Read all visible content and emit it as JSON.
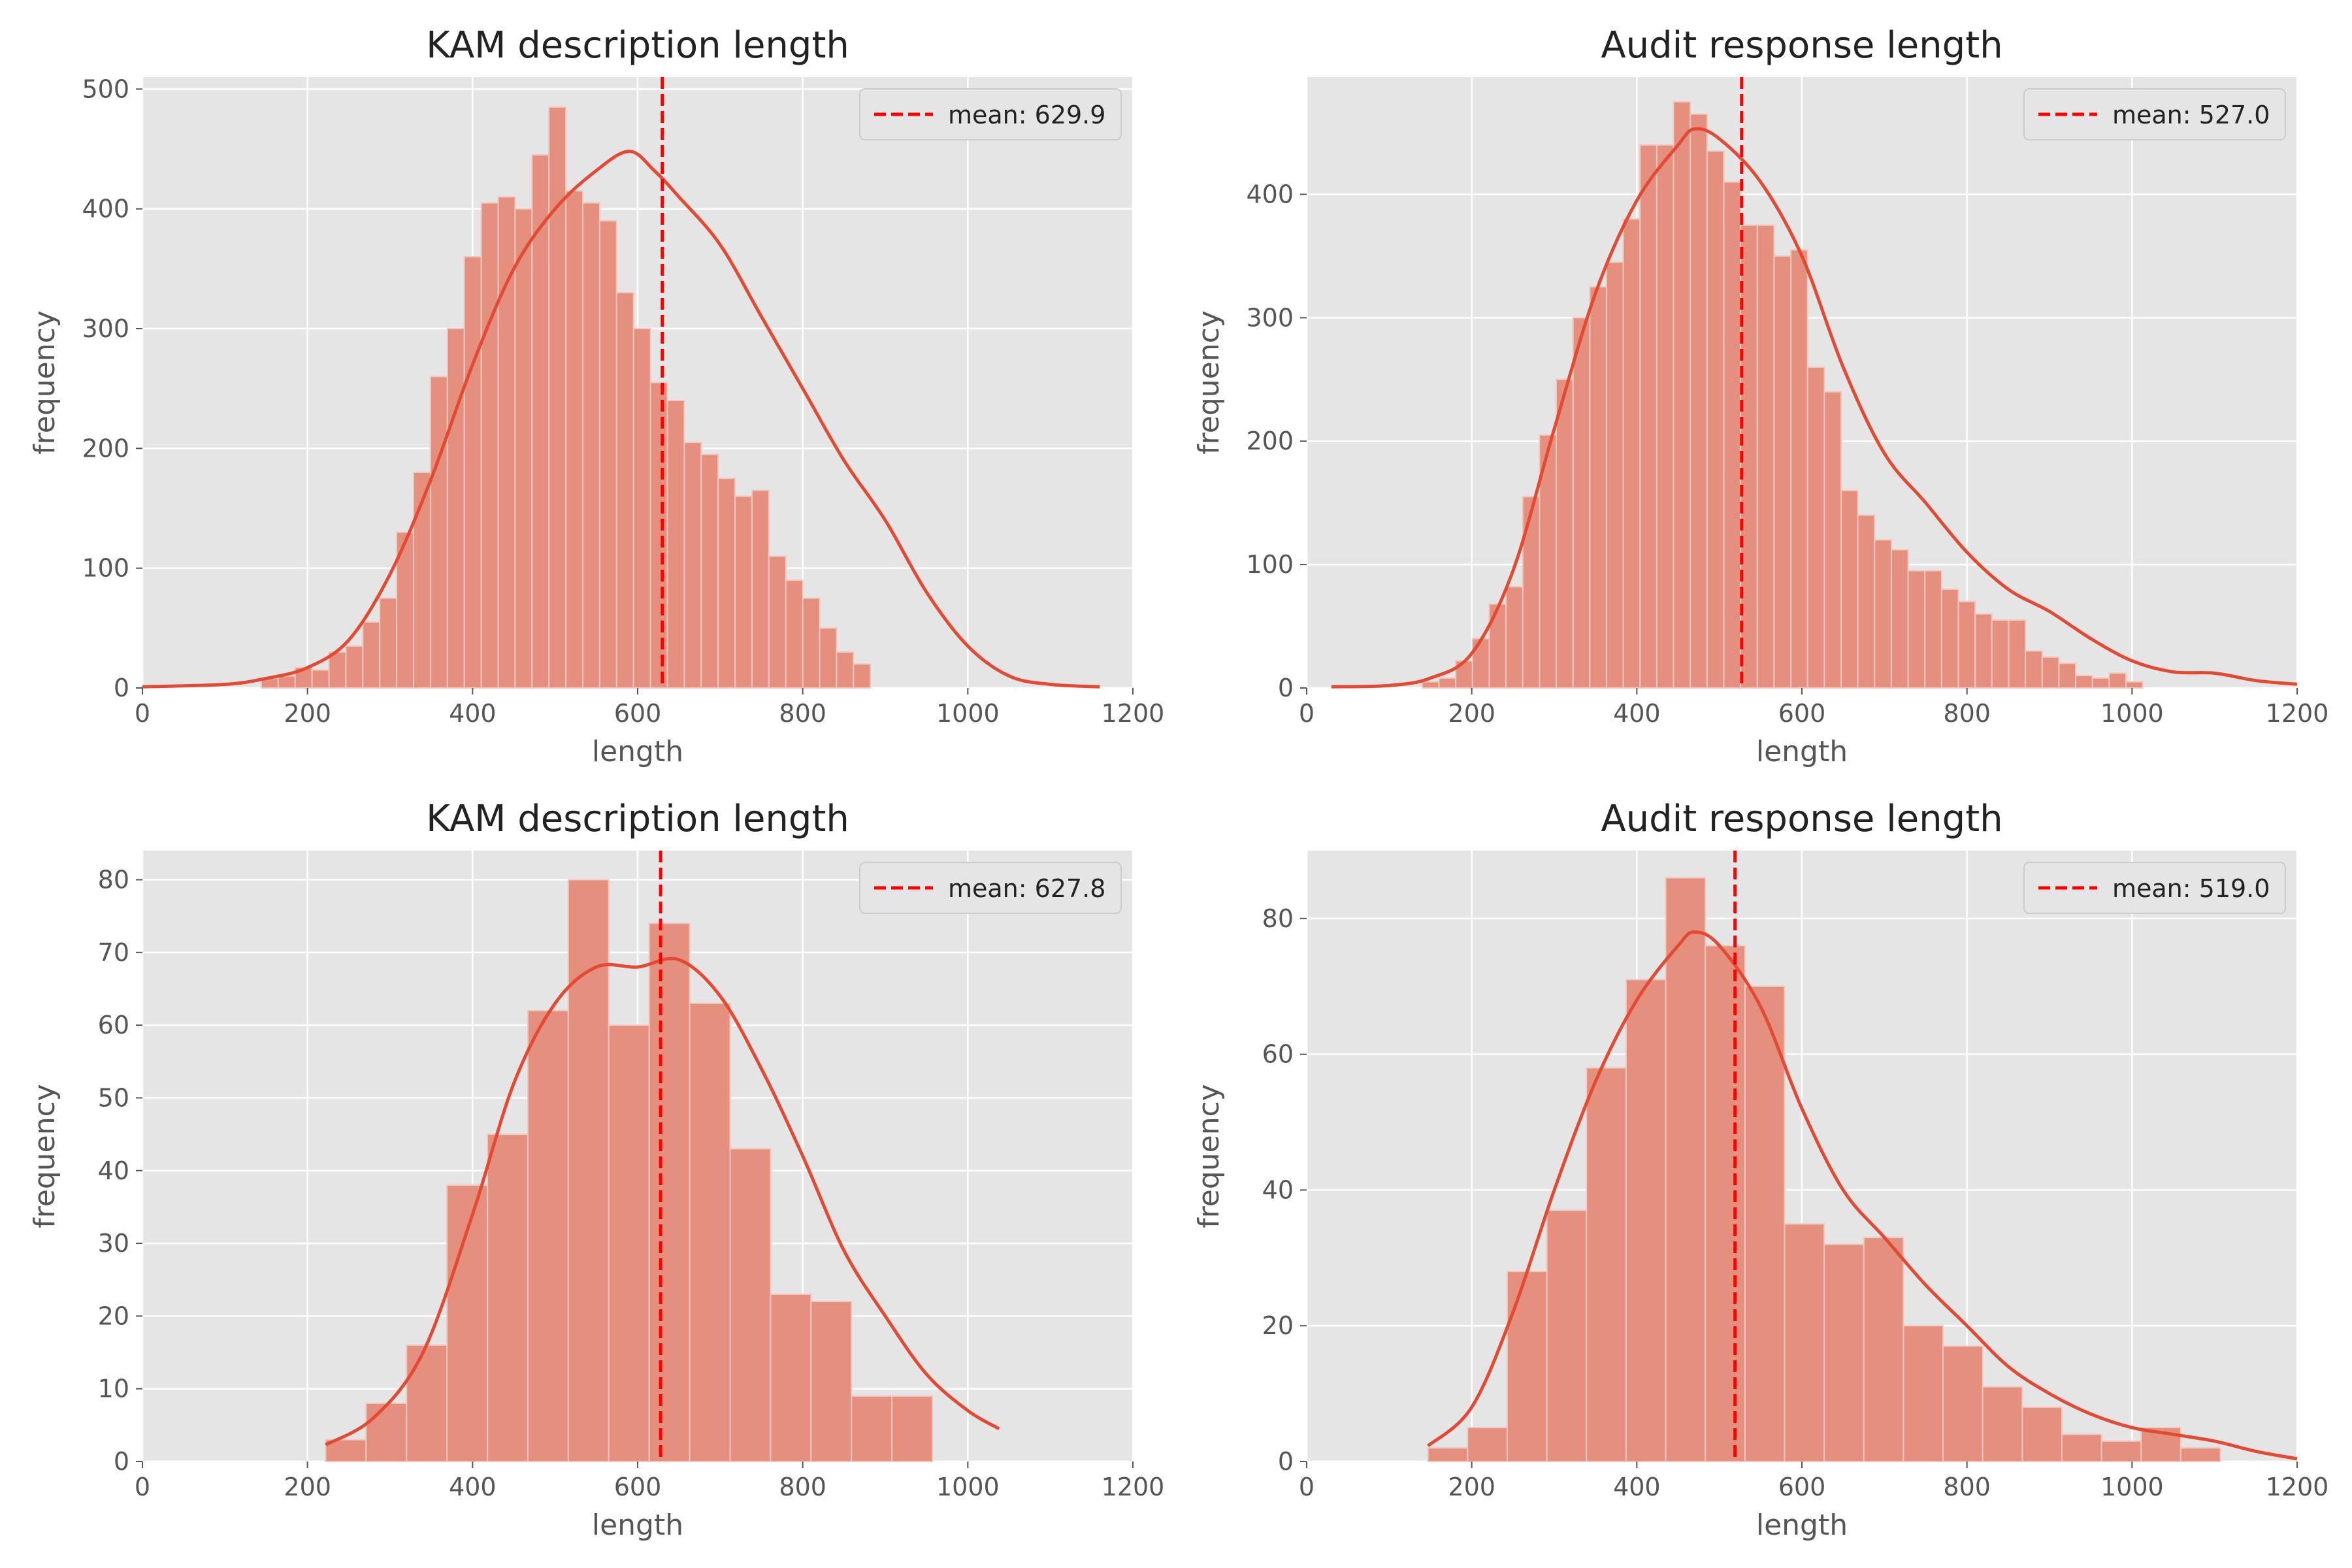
{
  "theme": {
    "plot_bg": "#e5e5e5",
    "grid": "#ffffff",
    "bar_fill": "#e5907f",
    "bar_edge": "#f0c8be",
    "kde": "#e24a33",
    "mean_line": "#ff0000"
  },
  "chart_data": [
    {
      "type": "bar",
      "title": "KAM description length",
      "xlabel": "length",
      "ylabel": "frequency",
      "xlim": [
        0,
        1200
      ],
      "ylim": [
        0,
        510
      ],
      "xticks": [
        0,
        200,
        400,
        600,
        800,
        1000,
        1200
      ],
      "yticks": [
        0,
        100,
        200,
        300,
        400,
        500
      ],
      "legend": "mean: 629.9",
      "legend_position": "top-right",
      "mean": 629.9,
      "bins": {
        "start": 144,
        "width": 20.5,
        "counts": [
          8,
          10,
          17,
          15,
          30,
          35,
          55,
          75,
          130,
          180,
          260,
          300,
          360,
          405,
          410,
          400,
          445,
          485,
          415,
          405,
          390,
          330,
          300,
          255,
          240,
          205,
          195,
          175,
          160,
          165,
          110,
          90,
          75,
          50,
          30,
          20
        ]
      },
      "kde": [
        [
          0,
          1
        ],
        [
          100,
          3
        ],
        [
          150,
          8
        ],
        [
          200,
          17
        ],
        [
          250,
          40
        ],
        [
          300,
          95
        ],
        [
          350,
          175
        ],
        [
          400,
          270
        ],
        [
          450,
          350
        ],
        [
          500,
          400
        ],
        [
          550,
          432
        ],
        [
          590,
          448
        ],
        [
          620,
          432
        ],
        [
          650,
          410
        ],
        [
          700,
          370
        ],
        [
          750,
          310
        ],
        [
          800,
          250
        ],
        [
          850,
          190
        ],
        [
          900,
          140
        ],
        [
          950,
          80
        ],
        [
          1000,
          35
        ],
        [
          1050,
          10
        ],
        [
          1100,
          3
        ],
        [
          1160,
          1
        ]
      ]
    },
    {
      "type": "bar",
      "title": "Audit response length",
      "xlabel": "length",
      "ylabel": "frequency",
      "xlim": [
        0,
        1200
      ],
      "ylim": [
        0,
        495
      ],
      "xticks": [
        0,
        200,
        400,
        600,
        800,
        1000,
        1200
      ],
      "yticks": [
        0,
        100,
        200,
        300,
        400
      ],
      "legend": "mean: 527.0",
      "legend_position": "top-right",
      "mean": 527.0,
      "bins": {
        "start": 140,
        "width": 20.3,
        "counts": [
          5,
          8,
          22,
          40,
          68,
          82,
          155,
          205,
          250,
          300,
          325,
          345,
          380,
          440,
          440,
          475,
          465,
          435,
          410,
          375,
          375,
          350,
          355,
          260,
          240,
          160,
          140,
          120,
          112,
          95,
          95,
          80,
          70,
          60,
          55,
          55,
          30,
          25,
          20,
          10,
          8,
          12,
          5
        ]
      },
      "kde": [
        [
          30,
          1
        ],
        [
          100,
          2
        ],
        [
          150,
          8
        ],
        [
          200,
          28
        ],
        [
          250,
          95
        ],
        [
          300,
          210
        ],
        [
          350,
          320
        ],
        [
          400,
          395
        ],
        [
          450,
          440
        ],
        [
          470,
          453
        ],
        [
          500,
          445
        ],
        [
          550,
          410
        ],
        [
          600,
          350
        ],
        [
          650,
          260
        ],
        [
          700,
          190
        ],
        [
          750,
          150
        ],
        [
          800,
          110
        ],
        [
          850,
          80
        ],
        [
          900,
          62
        ],
        [
          950,
          40
        ],
        [
          1000,
          22
        ],
        [
          1050,
          13
        ],
        [
          1100,
          12
        ],
        [
          1150,
          6
        ],
        [
          1200,
          3
        ]
      ]
    },
    {
      "type": "bar",
      "title": "KAM description length",
      "xlabel": "length",
      "ylabel": "frequency",
      "xlim": [
        0,
        1200
      ],
      "ylim": [
        0,
        84
      ],
      "xticks": [
        0,
        200,
        400,
        600,
        800,
        1000,
        1200
      ],
      "yticks": [
        0,
        10,
        20,
        30,
        40,
        50,
        60,
        70,
        80
      ],
      "legend": "mean: 627.8",
      "legend_position": "top-right",
      "mean": 627.8,
      "bins": {
        "start": 222,
        "width": 49,
        "counts": [
          3,
          8,
          16,
          38,
          45,
          62,
          80,
          60,
          74,
          63,
          43,
          23,
          22,
          9,
          9
        ]
      },
      "kde": [
        [
          222,
          2.3
        ],
        [
          280,
          6
        ],
        [
          340,
          15
        ],
        [
          400,
          34
        ],
        [
          450,
          52
        ],
        [
          500,
          63
        ],
        [
          550,
          68
        ],
        [
          600,
          68
        ],
        [
          650,
          69
        ],
        [
          700,
          64
        ],
        [
          750,
          54
        ],
        [
          800,
          42
        ],
        [
          850,
          29
        ],
        [
          900,
          20
        ],
        [
          950,
          12
        ],
        [
          1000,
          7
        ],
        [
          1038,
          4.5
        ]
      ]
    },
    {
      "type": "bar",
      "title": "Audit response length",
      "xlabel": "length",
      "ylabel": "frequency",
      "xlim": [
        0,
        1200
      ],
      "ylim": [
        0,
        90
      ],
      "xticks": [
        0,
        200,
        400,
        600,
        800,
        1000,
        1200
      ],
      "yticks": [
        0,
        20,
        40,
        60,
        80
      ],
      "legend": "mean: 519.0",
      "legend_position": "top-right",
      "mean": 519.0,
      "bins": {
        "start": 147,
        "width": 48,
        "counts": [
          2,
          5,
          28,
          37,
          58,
          71,
          86,
          76,
          70,
          35,
          32,
          33,
          20,
          17,
          11,
          8,
          4,
          3,
          5,
          2
        ]
      },
      "kde": [
        [
          147,
          2.3
        ],
        [
          200,
          8
        ],
        [
          250,
          22
        ],
        [
          300,
          40
        ],
        [
          350,
          56
        ],
        [
          400,
          68
        ],
        [
          450,
          76
        ],
        [
          470,
          78
        ],
        [
          500,
          76
        ],
        [
          550,
          67
        ],
        [
          600,
          52
        ],
        [
          650,
          40
        ],
        [
          700,
          33
        ],
        [
          750,
          26
        ],
        [
          800,
          20
        ],
        [
          850,
          14
        ],
        [
          900,
          10
        ],
        [
          950,
          7
        ],
        [
          1000,
          5
        ],
        [
          1050,
          4
        ],
        [
          1100,
          3
        ],
        [
          1150,
          1.5
        ],
        [
          1200,
          0.4
        ]
      ]
    }
  ]
}
